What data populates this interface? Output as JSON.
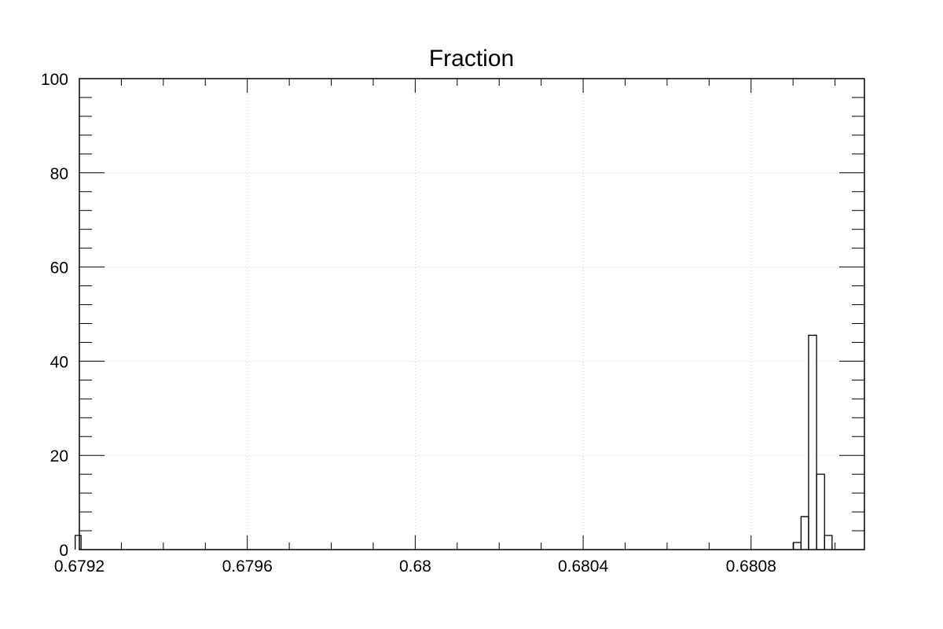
{
  "chart_data": {
    "type": "bar",
    "title": "Fraction",
    "xlabel": "",
    "ylabel": "",
    "xlim": [
      0.6792,
      0.68107
    ],
    "ylim": [
      0,
      100
    ],
    "grid": true,
    "x_ticks": [
      {
        "value": 0.6792,
        "label": "0.6792"
      },
      {
        "value": 0.6796,
        "label": "0.6796"
      },
      {
        "value": 0.68,
        "label": "0.68"
      },
      {
        "value": 0.6804,
        "label": "0.6804"
      },
      {
        "value": 0.6808,
        "label": "0.6808"
      }
    ],
    "y_ticks": [
      {
        "value": 0,
        "label": "0"
      },
      {
        "value": 20,
        "label": "20"
      },
      {
        "value": 40,
        "label": "40"
      },
      {
        "value": 60,
        "label": "60"
      },
      {
        "value": 80,
        "label": "80"
      },
      {
        "value": 100,
        "label": "100"
      }
    ],
    "bins": [
      {
        "x0": 0.67919,
        "x1": 0.679204,
        "count": 3
      },
      {
        "x0": 0.680901,
        "x1": 0.680919,
        "count": 1.5
      },
      {
        "x0": 0.680919,
        "x1": 0.680937,
        "count": 7
      },
      {
        "x0": 0.680937,
        "x1": 0.680956,
        "count": 45.5
      },
      {
        "x0": 0.680956,
        "x1": 0.680975,
        "count": 16
      },
      {
        "x0": 0.680975,
        "x1": 0.680993,
        "count": 3
      }
    ]
  }
}
